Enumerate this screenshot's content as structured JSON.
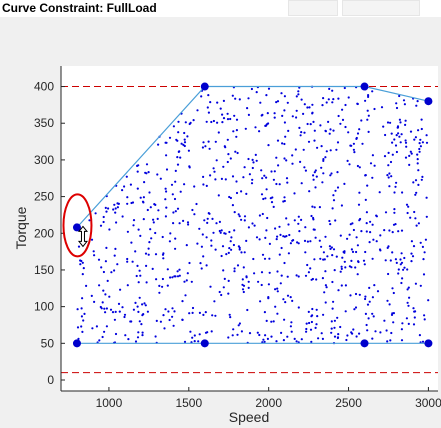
{
  "window": {
    "title": "Curve Constraint:  FullLoad"
  },
  "chart_data": {
    "type": "scatter",
    "xlabel": "Speed",
    "ylabel": "Torque",
    "xlim": [
      700,
      3060
    ],
    "ylim": [
      -15,
      428
    ],
    "x_ticks": [
      1000,
      1500,
      2000,
      2500,
      3000
    ],
    "y_ticks": [
      0,
      50,
      100,
      150,
      200,
      250,
      300,
      350,
      400
    ],
    "grid": false,
    "bounds": {
      "upper": 400,
      "lower": 10,
      "color": "#cc0000"
    },
    "constraint_points": [
      {
        "x": 800,
        "y": 208
      },
      {
        "x": 1600,
        "y": 400
      },
      {
        "x": 2600,
        "y": 400
      },
      {
        "x": 3000,
        "y": 380
      },
      {
        "x": 3000,
        "y": 50
      },
      {
        "x": 2600,
        "y": 50
      },
      {
        "x": 1600,
        "y": 50
      },
      {
        "x": 800,
        "y": 50
      }
    ],
    "selected_point": {
      "x": 800,
      "y": 208
    },
    "scatter_count": 1050,
    "colors": {
      "points": "#0000dd",
      "curve": "#4a9fd8",
      "marker": "#0000cc",
      "highlight": "#dd0000"
    }
  }
}
